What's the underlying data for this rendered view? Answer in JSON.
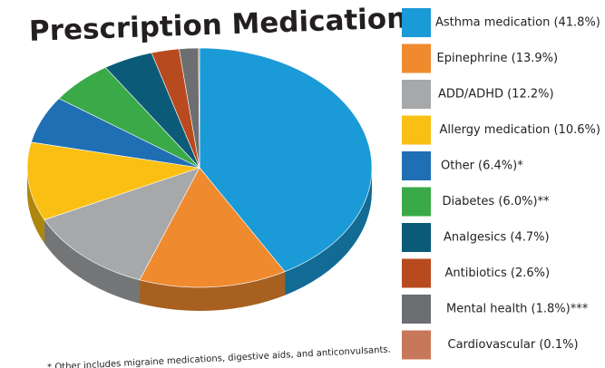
{
  "chart_data": {
    "type": "pie",
    "title": "Prescription Medications",
    "categories": [
      "Asthma medication (41.8%)",
      "Epinephrine (13.9%)",
      "ADD/ADHD (12.2%)",
      "Allergy medication (10.6%)",
      "Other (6.4%)*",
      "Diabetes (6.0%)**",
      "Analgesics (4.7%)",
      "Antibiotics (2.6%)",
      "Mental health (1.8%)***",
      "Cardiovascular (0.1%)"
    ],
    "values": [
      41.8,
      13.9,
      12.2,
      10.6,
      6.4,
      6.0,
      4.7,
      2.6,
      1.8,
      0.1
    ],
    "colors": [
      "#1a9ad6",
      "#ef8a2f",
      "#a7a8aa",
      "#f9c013",
      "#1f6fb5",
      "#3aaa49",
      "#0b5a78",
      "#b84a20",
      "#6d6e72",
      "#c8785a"
    ],
    "footnote": "* Other includes migraine medications, digestive aids, and anticonvulsants."
  }
}
